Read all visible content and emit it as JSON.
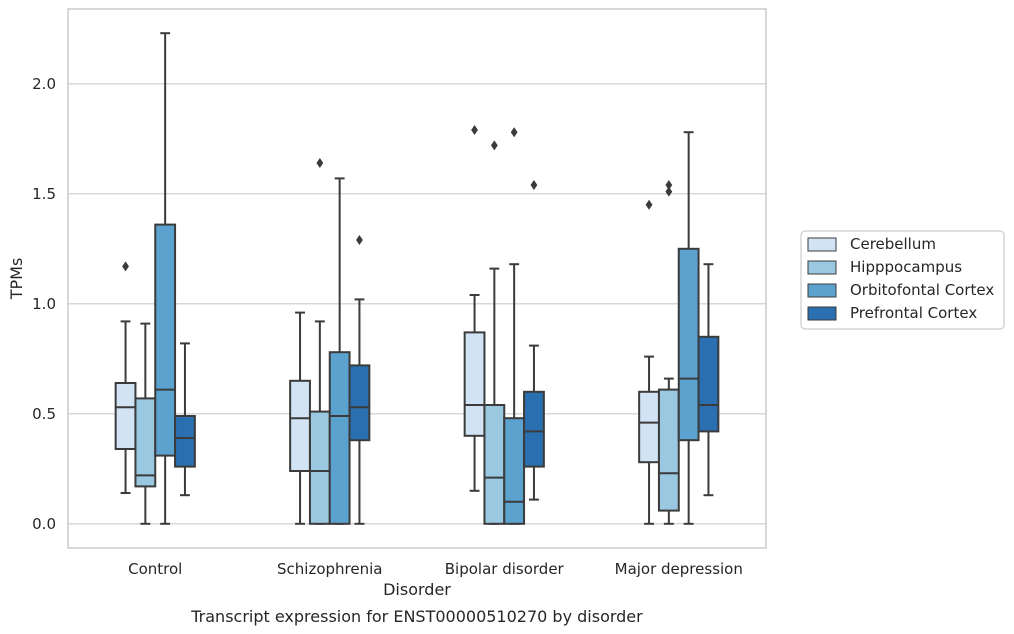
{
  "chart_data": {
    "type": "box",
    "caption": "Transcript expression for ENST00000510270 by disorder",
    "xlabel": "Disorder",
    "ylabel": "TPMs",
    "ylim": [
      -0.11,
      2.34
    ],
    "yticks": [
      "0.0",
      "0.5",
      "1.0",
      "1.5",
      "2.0"
    ],
    "grid": "horizontal",
    "legend_position": "right",
    "categories": [
      "Control",
      "Schizophrenia",
      "Bipolar disorder",
      "Major depression"
    ],
    "series": [
      {
        "name": "Cerebellum",
        "color": "#d2e3f3",
        "boxes": [
          {
            "whislo": 0.14,
            "q1": 0.34,
            "med": 0.53,
            "q3": 0.64,
            "whishi": 0.92,
            "fliers": [
              1.17
            ]
          },
          {
            "whislo": 0.0,
            "q1": 0.24,
            "med": 0.48,
            "q3": 0.65,
            "whishi": 0.96,
            "fliers": []
          },
          {
            "whislo": 0.15,
            "q1": 0.4,
            "med": 0.54,
            "q3": 0.87,
            "whishi": 1.04,
            "fliers": [
              1.79
            ]
          },
          {
            "whislo": 0.0,
            "q1": 0.28,
            "med": 0.46,
            "q3": 0.6,
            "whishi": 0.76,
            "fliers": [
              1.45
            ]
          }
        ]
      },
      {
        "name": "Hipppocampus",
        "color": "#9ac8e0",
        "boxes": [
          {
            "whislo": 0.0,
            "q1": 0.17,
            "med": 0.22,
            "q3": 0.57,
            "whishi": 0.91,
            "fliers": []
          },
          {
            "whislo": 0.0,
            "q1": 0.0,
            "med": 0.24,
            "q3": 0.51,
            "whishi": 0.92,
            "fliers": [
              1.64
            ]
          },
          {
            "whislo": 0.0,
            "q1": 0.0,
            "med": 0.21,
            "q3": 0.54,
            "whishi": 1.16,
            "fliers": [
              1.72
            ]
          },
          {
            "whislo": 0.0,
            "q1": 0.06,
            "med": 0.23,
            "q3": 0.61,
            "whishi": 0.66,
            "fliers": [
              1.51,
              1.54
            ]
          }
        ]
      },
      {
        "name": "Orbitofontal Cortex",
        "color": "#5ba2cf",
        "boxes": [
          {
            "whislo": 0.0,
            "q1": 0.31,
            "med": 0.61,
            "q3": 1.36,
            "whishi": 2.23,
            "fliers": []
          },
          {
            "whislo": 0.0,
            "q1": 0.0,
            "med": 0.49,
            "q3": 0.78,
            "whishi": 1.57,
            "fliers": []
          },
          {
            "whislo": 0.0,
            "q1": 0.0,
            "med": 0.1,
            "q3": 0.48,
            "whishi": 1.18,
            "fliers": [
              1.78
            ]
          },
          {
            "whislo": 0.0,
            "q1": 0.38,
            "med": 0.66,
            "q3": 1.25,
            "whishi": 1.78,
            "fliers": []
          }
        ]
      },
      {
        "name": "Prefrontal Cortex",
        "color": "#2a6fb0",
        "boxes": [
          {
            "whislo": 0.13,
            "q1": 0.26,
            "med": 0.39,
            "q3": 0.49,
            "whishi": 0.82,
            "fliers": []
          },
          {
            "whislo": 0.0,
            "q1": 0.38,
            "med": 0.53,
            "q3": 0.72,
            "whishi": 1.02,
            "fliers": [
              1.29
            ]
          },
          {
            "whislo": 0.11,
            "q1": 0.26,
            "med": 0.42,
            "q3": 0.6,
            "whishi": 0.81,
            "fliers": [
              1.54
            ]
          },
          {
            "whislo": 0.13,
            "q1": 0.42,
            "med": 0.54,
            "q3": 0.85,
            "whishi": 1.18,
            "fliers": []
          }
        ]
      }
    ]
  }
}
